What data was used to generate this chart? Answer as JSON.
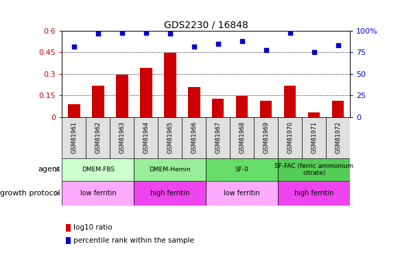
{
  "title": "GDS2230 / 16848",
  "categories": [
    "GSM81961",
    "GSM81962",
    "GSM81963",
    "GSM81964",
    "GSM81965",
    "GSM81966",
    "GSM81967",
    "GSM81968",
    "GSM81969",
    "GSM81970",
    "GSM81971",
    "GSM81972"
  ],
  "log10_ratio": [
    0.09,
    0.22,
    0.295,
    0.34,
    0.445,
    0.21,
    0.125,
    0.145,
    0.115,
    0.22,
    0.03,
    0.115
  ],
  "percentile_rank": [
    82,
    97,
    98,
    98,
    97,
    82,
    85,
    88,
    78,
    98,
    75,
    83
  ],
  "bar_color": "#cc0000",
  "dot_color": "#0000cc",
  "ylim_left": [
    0,
    0.6
  ],
  "ylim_right": [
    0,
    100
  ],
  "yticks_left": [
    0,
    0.15,
    0.3,
    0.45,
    0.6
  ],
  "yticks_right": [
    0,
    25,
    50,
    75,
    100
  ],
  "agent_groups": [
    {
      "label": "DMEM-FBS",
      "start": 0,
      "end": 3,
      "color": "#ccffcc"
    },
    {
      "label": "DMEM-Hemin",
      "start": 3,
      "end": 6,
      "color": "#99ee99"
    },
    {
      "label": "SF-0",
      "start": 6,
      "end": 9,
      "color": "#66dd66"
    },
    {
      "label": "SF-FAC (ferric ammonium\ncitrate)",
      "start": 9,
      "end": 12,
      "color": "#55cc55"
    }
  ],
  "growth_protocol_groups": [
    {
      "label": "low ferritin",
      "start": 0,
      "end": 3,
      "color": "#ffaaff"
    },
    {
      "label": "high ferritin",
      "start": 3,
      "end": 6,
      "color": "#ee44ee"
    },
    {
      "label": "low ferritin",
      "start": 6,
      "end": 9,
      "color": "#ffaaff"
    },
    {
      "label": "high ferritin",
      "start": 9,
      "end": 12,
      "color": "#ee44ee"
    }
  ],
  "legend_items": [
    {
      "label": "log10 ratio",
      "color": "#cc0000"
    },
    {
      "label": "percentile rank within the sample",
      "color": "#0000cc"
    }
  ],
  "left_label_color": "#cc0000",
  "right_label_color": "#0000cc"
}
